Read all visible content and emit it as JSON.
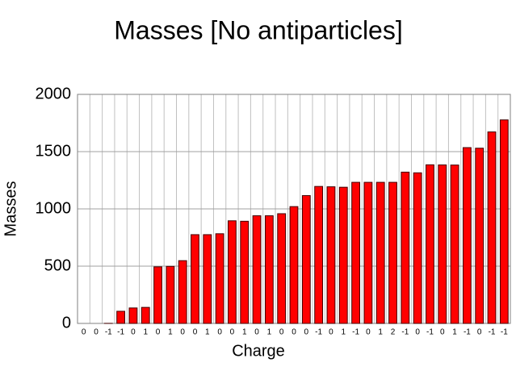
{
  "chart_data": {
    "type": "bar",
    "title": "Masses [No antiparticles]",
    "x_label": "Charge",
    "y_label": "Masses",
    "categories": [
      "0",
      "0",
      "-1",
      "-1",
      "0",
      "1",
      "0",
      "1",
      "0",
      "0",
      "1",
      "0",
      "0",
      "1",
      "0",
      "1",
      "0",
      "0",
      "0",
      "-1",
      "0",
      "1",
      "-1",
      "0",
      "1",
      "2",
      "-1",
      "0",
      "-1",
      "0",
      "1",
      "-1",
      "0",
      "-1",
      "-1"
    ],
    "values": [
      0,
      0,
      0.5,
      106,
      135,
      140,
      494,
      498,
      548,
      775,
      775,
      783,
      896,
      892,
      940,
      940,
      958,
      1020,
      1116,
      1196,
      1193,
      1189,
      1232,
      1232,
      1232,
      1232,
      1321,
      1315,
      1385,
      1384,
      1383,
      1535,
      1530,
      1672,
      1777
    ],
    "color": "#ff0000",
    "ylim": [
      0,
      2000
    ],
    "yticks": [
      0,
      500,
      1000,
      1500,
      2000
    ],
    "grid": true
  }
}
